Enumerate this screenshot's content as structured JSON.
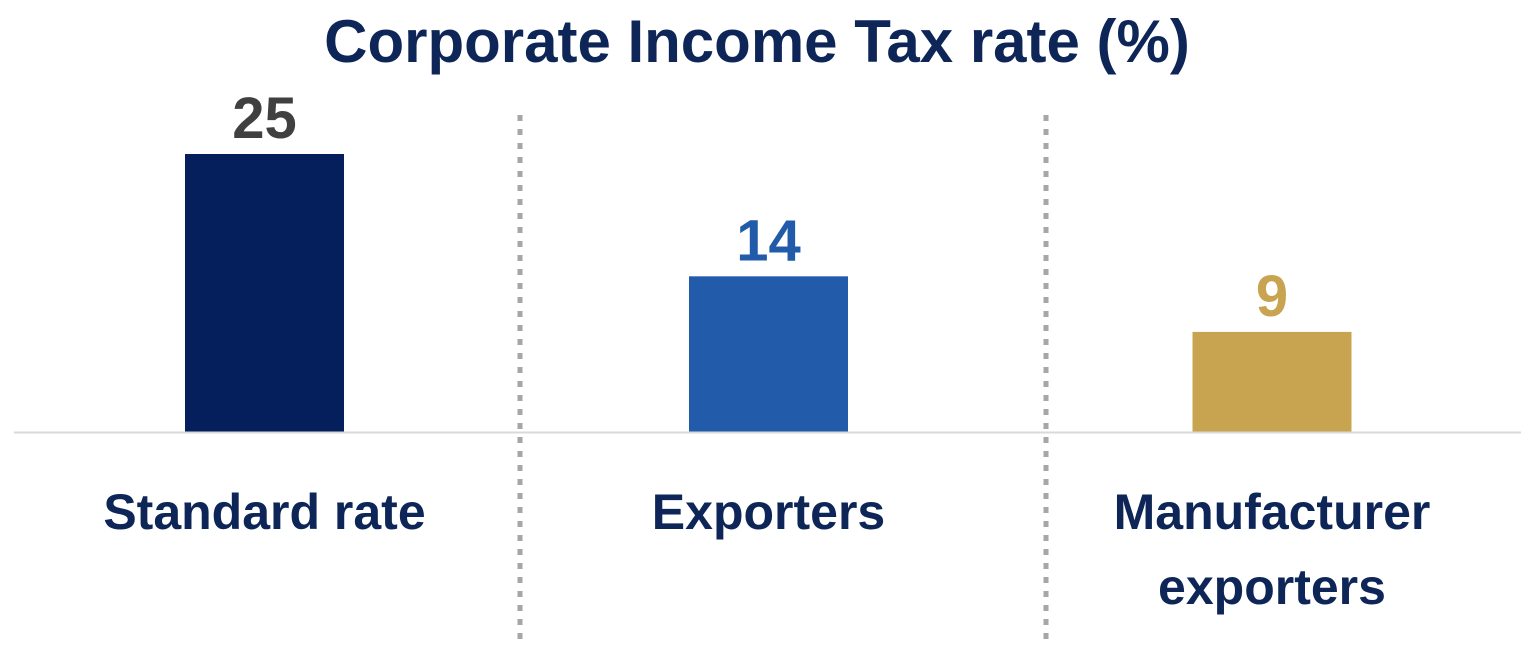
{
  "colors": {
    "title": "#0d2557",
    "category_text": "#0d2557",
    "baseline": "#d9d9d9",
    "separator": "#a6a6a6"
  },
  "chart_data": {
    "type": "bar",
    "title": "Corporate Income Tax rate (%)",
    "xlabel": "",
    "ylabel": "",
    "ylim": [
      0,
      25
    ],
    "grid": false,
    "legend": "none",
    "categories": [
      [
        "Standard rate"
      ],
      [
        "Exporters"
      ],
      [
        "Manufacturer",
        "exporters"
      ]
    ],
    "values": [
      25,
      14,
      9
    ],
    "data_labels": [
      "25",
      "14",
      "9"
    ],
    "bar_colors": [
      "#041f5c",
      "#215ba9",
      "#c8a450"
    ],
    "label_colors": [
      "#404040",
      "#215ba9",
      "#c8a450"
    ]
  }
}
